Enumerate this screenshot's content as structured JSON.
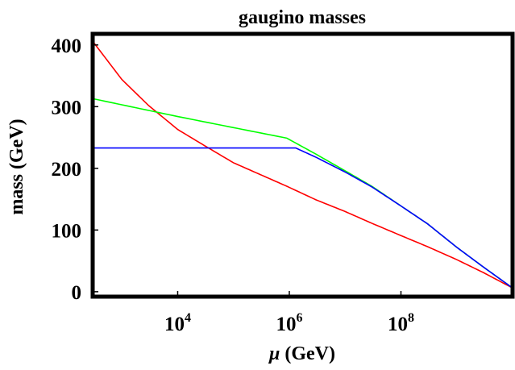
{
  "chart_data": {
    "type": "line",
    "title": "gaugino masses",
    "xlabel_symbol": "μ",
    "xlabel_unit": " (GeV)",
    "ylabel": "mass (GeV)",
    "xscale": "log",
    "xlim": [
      300,
      10000000000
    ],
    "ylim": [
      -8,
      418
    ],
    "x_ticks": [
      {
        "value": 10000,
        "base": "10",
        "exp": "4"
      },
      {
        "value": 1000000,
        "base": "10",
        "exp": "6"
      },
      {
        "value": 100000000,
        "base": "10",
        "exp": "8"
      }
    ],
    "y_ticks": [
      {
        "value": 0,
        "label": "0"
      },
      {
        "value": 100,
        "label": "100"
      },
      {
        "value": 200,
        "label": "200"
      },
      {
        "value": 300,
        "label": "300"
      },
      {
        "value": 400,
        "label": "400"
      }
    ],
    "grid": false,
    "series": [
      {
        "color": "#ff0000",
        "x": [
          300,
          1000,
          3000,
          10000,
          30000,
          100000,
          300000,
          900000,
          3000000,
          10000000,
          30000000,
          100000000,
          300000000,
          1000000000,
          3000000000,
          10000000000
        ],
        "y": [
          406,
          344,
          302,
          263,
          237,
          209,
          190,
          171,
          149,
          130,
          111,
          91,
          73,
          52,
          31,
          6
        ]
      },
      {
        "color": "#00ff00",
        "x": [
          300,
          1000,
          10000,
          100000,
          900000,
          3000000,
          10000000,
          30000000,
          100000000,
          300000000,
          1000000000,
          3000000000,
          10000000000
        ],
        "y": [
          313,
          303,
          284,
          266,
          249,
          223,
          196,
          171,
          139,
          110,
          72,
          40,
          6
        ]
      },
      {
        "color": "#0000ff",
        "x": [
          300,
          900000,
          1300000,
          3000000,
          10000000,
          30000000,
          100000000,
          300000000,
          1000000000,
          3000000000,
          10000000000
        ],
        "y": [
          233,
          233,
          233,
          218,
          194,
          170,
          139,
          110,
          72,
          40,
          6
        ]
      }
    ]
  }
}
